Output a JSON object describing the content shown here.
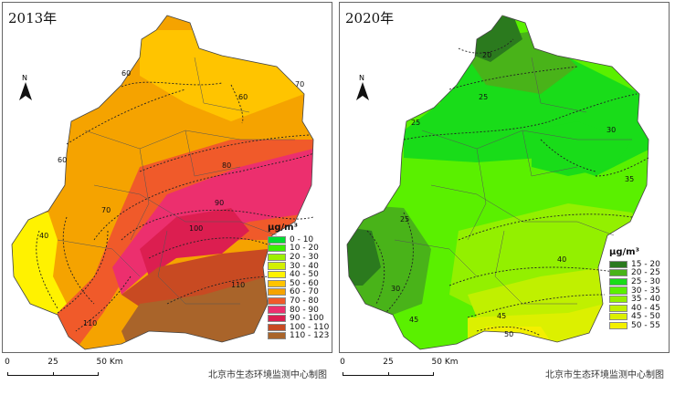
{
  "maps": {
    "left": {
      "title": "2013年",
      "legend_unit": "μg/m³",
      "legend": [
        {
          "label": "0 - 10",
          "color": "#00dc32"
        },
        {
          "label": "10 - 20",
          "color": "#3cf000"
        },
        {
          "label": "20 - 30",
          "color": "#9ef000"
        },
        {
          "label": "30 - 40",
          "color": "#d2f000"
        },
        {
          "label": "40 - 50",
          "color": "#fff200"
        },
        {
          "label": "50 - 60",
          "color": "#ffc400"
        },
        {
          "label": "60 - 70",
          "color": "#f5a300"
        },
        {
          "label": "70 - 80",
          "color": "#f05a2a"
        },
        {
          "label": "80 - 90",
          "color": "#ec2f6e"
        },
        {
          "label": "90 - 100",
          "color": "#dc1e50"
        },
        {
          "label": "100 - 110",
          "color": "#c84a22"
        },
        {
          "label": "110 - 123",
          "color": "#a9642a"
        }
      ],
      "contour_labels": [
        "60",
        "70",
        "60",
        "70",
        "60",
        "40",
        "80",
        "90",
        "100",
        "110",
        "110"
      ],
      "north_label": "N"
    },
    "right": {
      "title": "2020年",
      "legend_unit": "μg/m³",
      "legend": [
        {
          "label": "15 - 20",
          "color": "#2b7a1e"
        },
        {
          "label": "20 - 25",
          "color": "#49b319"
        },
        {
          "label": "25 - 30",
          "color": "#19dc19"
        },
        {
          "label": "30 - 35",
          "color": "#5af000"
        },
        {
          "label": "35 - 40",
          "color": "#93f000"
        },
        {
          "label": "40 - 45",
          "color": "#c0f000"
        },
        {
          "label": "45 - 50",
          "color": "#dcf000"
        },
        {
          "label": "50 - 55",
          "color": "#f3f000"
        }
      ],
      "contour_labels": [
        "20",
        "25",
        "25",
        "30",
        "35",
        "25",
        "30",
        "40",
        "45",
        "45",
        "50"
      ],
      "north_label": "N"
    }
  },
  "scalebar": {
    "labels": [
      "0",
      "25",
      "50 Km"
    ]
  },
  "credit": "北京市生态环境监测中心制图"
}
